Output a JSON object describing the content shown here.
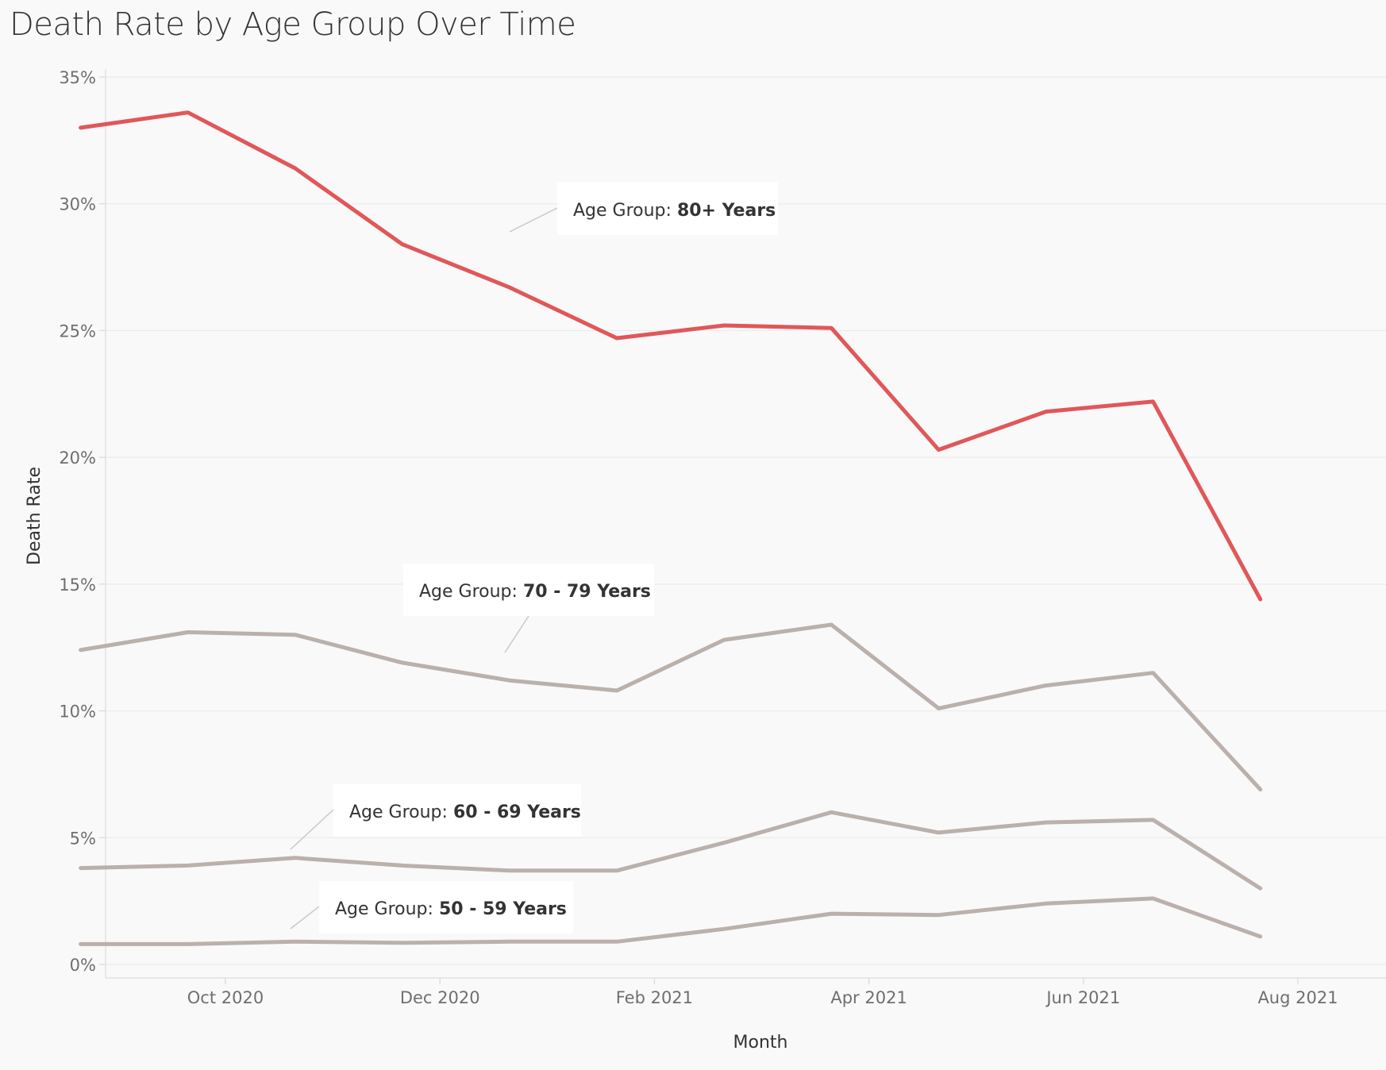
{
  "chart_data": {
    "type": "line",
    "title": "Death Rate by Age Group Over Time",
    "xlabel": "Month",
    "ylabel": "Death Rate",
    "x": [
      "2020-09",
      "2020-10",
      "2020-11",
      "2020-12",
      "2021-01",
      "2021-02",
      "2021-03",
      "2021-04",
      "2021-05",
      "2021-06",
      "2021-07",
      "2021-08"
    ],
    "xticks": [
      {
        "date": "2020-10",
        "label": "Oct 2020"
      },
      {
        "date": "2020-12",
        "label": "Dec 2020"
      },
      {
        "date": "2021-02",
        "label": "Feb 2021"
      },
      {
        "date": "2021-04",
        "label": "Apr 2021"
      },
      {
        "date": "2021-06",
        "label": "Jun 2021"
      },
      {
        "date": "2021-08",
        "label": "Aug 2021"
      }
    ],
    "yticks": [
      0,
      5,
      10,
      15,
      20,
      25,
      30,
      35
    ],
    "ytick_suffix": "%",
    "ylim": [
      0,
      35
    ],
    "grid": true,
    "series": [
      {
        "name": "80+ Years",
        "color": "#e15759",
        "values": [
          33.0,
          33.6,
          31.4,
          28.4,
          26.7,
          24.7,
          25.2,
          25.1,
          20.3,
          21.8,
          22.2,
          14.4
        ]
      },
      {
        "name": "70 - 79 Years",
        "color": "#bab0ac",
        "values": [
          12.4,
          13.1,
          13.0,
          11.9,
          11.2,
          10.8,
          12.8,
          13.4,
          10.1,
          11.0,
          11.5,
          6.9
        ]
      },
      {
        "name": "60 - 69 Years",
        "color": "#bab0ac",
        "values": [
          3.8,
          3.9,
          4.2,
          3.9,
          3.7,
          3.7,
          4.8,
          6.0,
          5.2,
          5.6,
          5.7,
          3.0
        ]
      },
      {
        "name": "50 - 59 Years",
        "color": "#bab0ac",
        "values": [
          0.8,
          0.8,
          0.9,
          0.85,
          0.9,
          0.9,
          1.4,
          2.0,
          1.95,
          2.4,
          2.6,
          1.1
        ]
      }
    ],
    "annotations": [
      {
        "prefix": "Age Group: ",
        "value": "80+ Years"
      },
      {
        "prefix": "Age Group: ",
        "value": "70 - 79 Years"
      },
      {
        "prefix": "Age Group: ",
        "value": "60 - 69 Years"
      },
      {
        "prefix": "Age Group: ",
        "value": "50 - 59 Years"
      }
    ]
  }
}
